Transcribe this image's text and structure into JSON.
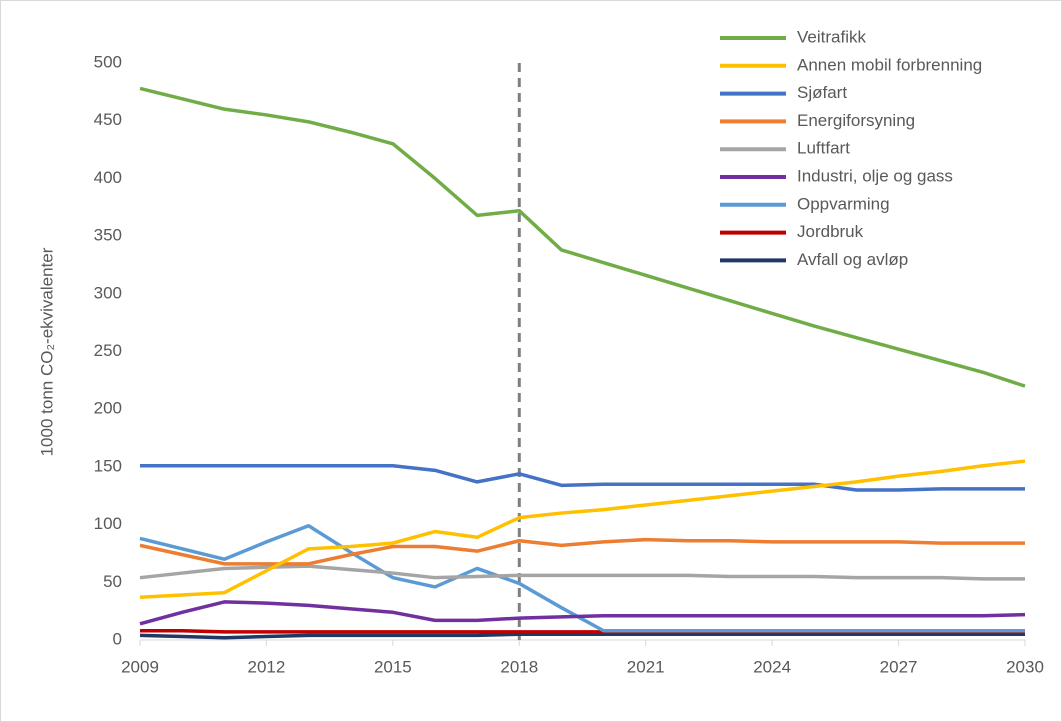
{
  "chart_data": {
    "type": "line",
    "ylabel": "1000 tonn CO₂-ekvivalenter",
    "x": [
      2009,
      2010,
      2011,
      2012,
      2013,
      2014,
      2015,
      2016,
      2017,
      2018,
      2019,
      2020,
      2021,
      2022,
      2023,
      2024,
      2025,
      2026,
      2027,
      2028,
      2029,
      2030
    ],
    "xlim": [
      2009,
      2030
    ],
    "xticks": [
      2009,
      2012,
      2015,
      2018,
      2021,
      2024,
      2027,
      2030
    ],
    "ylim": [
      0,
      500
    ],
    "yticks": [
      0,
      50,
      100,
      150,
      200,
      250,
      300,
      350,
      400,
      450,
      500
    ],
    "vline": 2018,
    "grid": false,
    "legend": "top-right",
    "series": [
      {
        "name": "Veitrafikk",
        "color": "#70ad47",
        "values": [
          478,
          469,
          460,
          455,
          449,
          440,
          430,
          400,
          368,
          372,
          338,
          327,
          316,
          305,
          294,
          283,
          272,
          262,
          252,
          242,
          232,
          220
        ]
      },
      {
        "name": "Annen mobil forbrenning",
        "color": "#ffc000",
        "values": [
          37,
          39,
          41,
          60,
          79,
          81,
          84,
          94,
          89,
          106,
          110,
          113,
          117,
          121,
          125,
          129,
          133,
          137,
          142,
          146,
          151,
          155
        ]
      },
      {
        "name": "Sjøfart",
        "color": "#4472c4",
        "values": [
          151,
          151,
          151,
          151,
          151,
          151,
          151,
          147,
          137,
          144,
          134,
          135,
          135,
          135,
          135,
          135,
          135,
          130,
          130,
          131,
          131,
          131
        ]
      },
      {
        "name": "Energiforsyning",
        "color": "#ed7d31",
        "values": [
          82,
          74,
          66,
          66,
          66,
          74,
          81,
          81,
          77,
          86,
          82,
          85,
          87,
          86,
          86,
          85,
          85,
          85,
          85,
          84,
          84,
          84
        ]
      },
      {
        "name": "Luftfart",
        "color": "#a5a5a5",
        "values": [
          54,
          58,
          62,
          63,
          64,
          61,
          58,
          54,
          55,
          56,
          56,
          56,
          56,
          56,
          55,
          55,
          55,
          54,
          54,
          54,
          53,
          53
        ]
      },
      {
        "name": "Industri, olje og gass",
        "color": "#7030a0",
        "values": [
          14,
          24,
          33,
          32,
          30,
          27,
          24,
          17,
          17,
          19,
          20,
          21,
          21,
          21,
          21,
          21,
          21,
          21,
          21,
          21,
          21,
          22
        ]
      },
      {
        "name": "Oppvarming",
        "color": "#5b9bd5",
        "values": [
          88,
          79,
          70,
          85,
          99,
          76,
          54,
          46,
          62,
          49,
          28,
          8,
          8,
          8,
          8,
          8,
          8,
          8,
          8,
          8,
          8,
          8
        ]
      },
      {
        "name": "Jordbruk",
        "color": "#c00000",
        "values": [
          8,
          8,
          7,
          7,
          7,
          7,
          7,
          7,
          7,
          7,
          7,
          7,
          7,
          7,
          7,
          7,
          7,
          7,
          7,
          7,
          7,
          7
        ]
      },
      {
        "name": "Avfall og avløp",
        "color": "#203864",
        "values": [
          4,
          3,
          2,
          3,
          4,
          4,
          4,
          4,
          4,
          5,
          5,
          5,
          5,
          5,
          5,
          5,
          5,
          5,
          5,
          5,
          5,
          5
        ]
      }
    ]
  }
}
